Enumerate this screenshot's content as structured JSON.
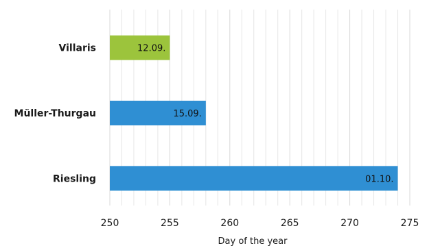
{
  "chart_data": {
    "type": "bar",
    "orientation": "horizontal",
    "categories": [
      "Villaris",
      "Müller-Thurgau",
      "Riesling"
    ],
    "values": [
      255,
      258,
      274
    ],
    "data_labels": [
      "12.09.",
      "15.09.",
      "01.10."
    ],
    "colors": [
      "#9cc43c",
      "#2f8fd3",
      "#2f8fd3"
    ],
    "xlabel": "Day of the year",
    "xlim": [
      250,
      275
    ],
    "xticks": [
      250,
      255,
      260,
      265,
      270,
      275
    ],
    "xtick_labels": [
      "250",
      "255",
      "260",
      "265",
      "270",
      "275"
    ],
    "grid": true,
    "grid_color": "#e6e6e6"
  }
}
